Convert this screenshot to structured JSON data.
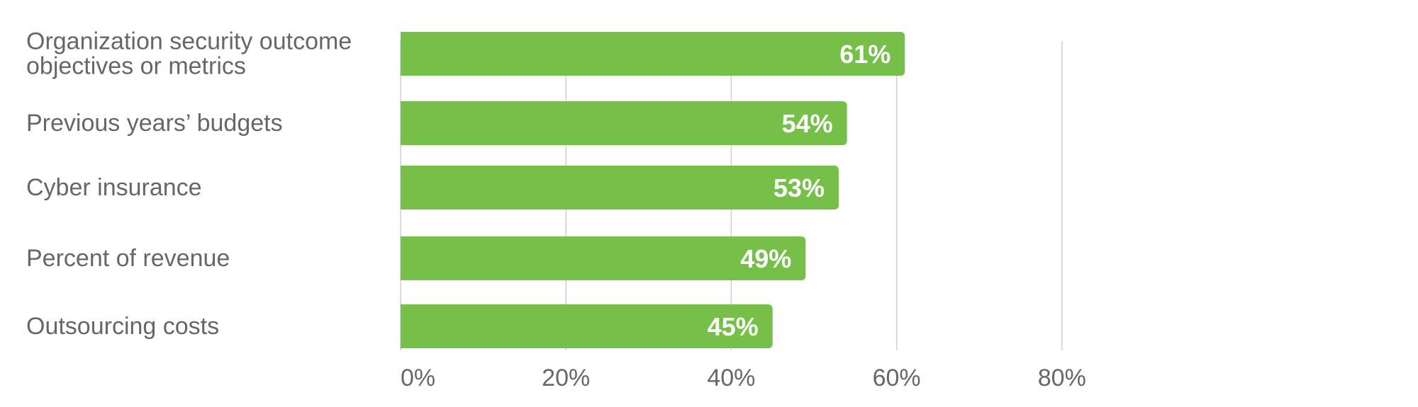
{
  "chart_data": {
    "type": "bar",
    "orientation": "horizontal",
    "categories": [
      [
        "Organization security outcome",
        "objectives or metrics"
      ],
      [
        "Previous years’ budgets"
      ],
      [
        "Cyber insurance"
      ],
      [
        "Percent of revenue"
      ],
      [
        "Outsourcing costs"
      ]
    ],
    "values": [
      61,
      54,
      53,
      49,
      45
    ],
    "data_labels": [
      "61%",
      "54%",
      "53%",
      "49%",
      "45%"
    ],
    "xticks": [
      0,
      20,
      40,
      60,
      80
    ],
    "xtick_labels": [
      "0%",
      "20%",
      "40%",
      "60%",
      "80%"
    ],
    "xlim": [
      0,
      80
    ],
    "grid": true,
    "bar_color": "#76c04a",
    "text_color": "#66676b",
    "label_color": "#ffffff"
  }
}
